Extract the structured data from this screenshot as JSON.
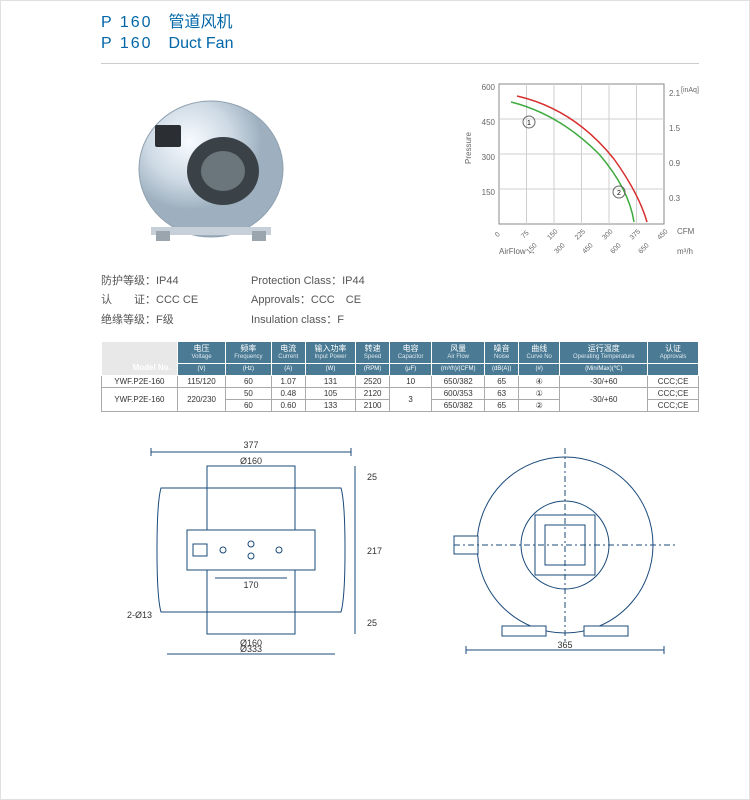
{
  "title": {
    "model": "P  160",
    "name_cn": "管道风机",
    "name_en": "Duct Fan"
  },
  "specs": [
    {
      "label_cn": "防护等级：IP44",
      "label_en": "Protection Class：IP44"
    },
    {
      "label_cn": "认　　证：CCC CE",
      "label_en": "Approvals：CCC　CE"
    },
    {
      "label_cn": "绝缘等级：F级",
      "label_en": "Insulation class：F"
    }
  ],
  "chart": {
    "axis_color": "#888",
    "grid_color": "#cfcfcf",
    "curve1_color": "#3eaa3e",
    "curve2_color": "#d82e2e",
    "bg": "#ffffff",
    "y_left_label": "Pressure",
    "y_left_ticks": [
      "600",
      "450",
      "300",
      "150"
    ],
    "y_right_ticks": [
      "2.1",
      "1.5",
      "0.9",
      "0.3"
    ],
    "y_right_label": "[inAq]",
    "x_label": "CFM",
    "x_ticks": [
      "0",
      "75",
      "150",
      "225",
      "300",
      "375",
      "450"
    ],
    "bottom_l": "AirFlow →",
    "bottom_r_ticks": [
      "150",
      "300",
      "450",
      "600",
      "650"
    ],
    "bottom_r_unit": "m³/h"
  },
  "table": {
    "headers": [
      {
        "cn": "电压",
        "en": "Voltage"
      },
      {
        "cn": "频率",
        "en": "Frequency"
      },
      {
        "cn": "电流",
        "en": "Current"
      },
      {
        "cn": "输入功率",
        "en": "Input Power"
      },
      {
        "cn": "转速",
        "en": "Speed"
      },
      {
        "cn": "电容",
        "en": "Capacitor"
      },
      {
        "cn": "风量",
        "en": "Air Flow"
      },
      {
        "cn": "噪音",
        "en": "Noise"
      },
      {
        "cn": "曲线",
        "en": "Curve No"
      },
      {
        "cn": "运行温度",
        "en": "Operating Temperature"
      },
      {
        "cn": "认证",
        "en": "Approvals"
      }
    ],
    "corner": "Model No.",
    "rows": [
      {
        "model": "YWF.P2E-160",
        "v": "115/120",
        "f": "60",
        "a": "1.07",
        "w": "131",
        "rpm": "2520",
        "cap": "10",
        "flow": "650/382",
        "db": "65",
        "curve": "④",
        "temp": "-30/+60",
        "appr": "CCC;CE"
      },
      {
        "model": "YWF.P2E-160",
        "v": "220/230",
        "f": "50",
        "a": "0.48",
        "w": "105",
        "rpm": "2120",
        "cap": "3",
        "flow": "600/353",
        "db": "63",
        "curve": "①",
        "temp": "-30/+60",
        "appr": "CCC;CE"
      },
      {
        "model": "",
        "v": "",
        "f": "60",
        "a": "0.60",
        "w": "133",
        "rpm": "2100",
        "cap": "",
        "flow": "650/382",
        "db": "65",
        "curve": "②",
        "temp": "",
        "appr": "CCC;CE"
      }
    ]
  },
  "drawings": {
    "stroke": "#1a4a7a",
    "fill": "#fff",
    "left": {
      "w377": "377",
      "d160t": "Ø160",
      "d160b": "Ø160",
      "h217": "217",
      "h25t": "25",
      "h25b": "25",
      "l170": "170",
      "holes": "2-Ø13",
      "d333": "Ø333"
    },
    "right": {
      "w365": "365"
    }
  }
}
